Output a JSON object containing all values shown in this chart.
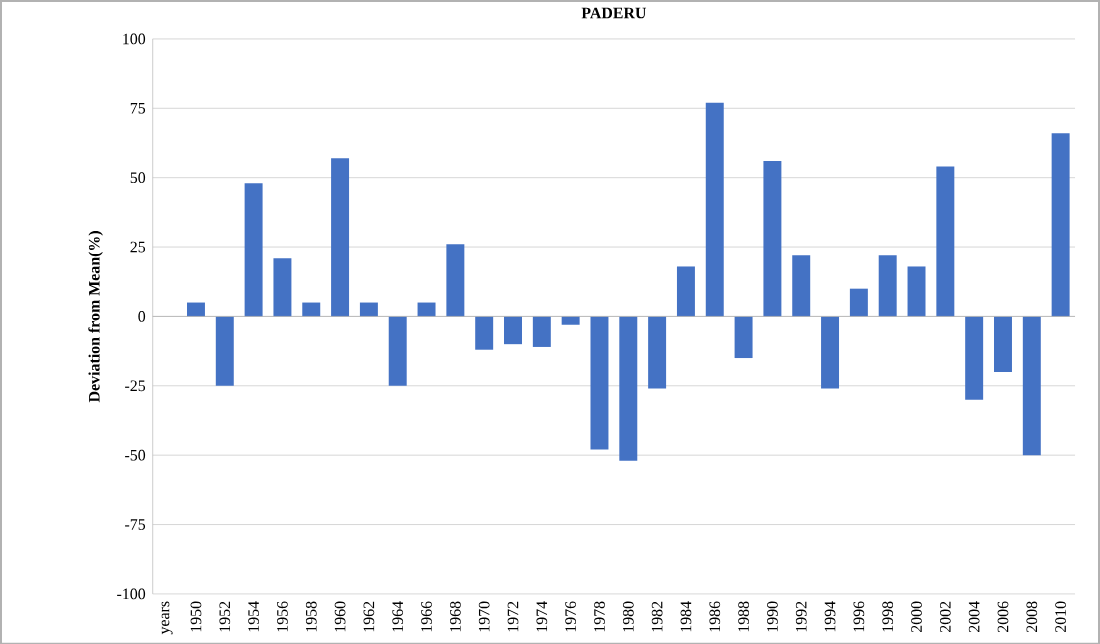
{
  "chart_data": {
    "type": "bar",
    "title": "PADERU",
    "ylabel": "Deviation from Mean(%)",
    "categories": [
      "years",
      "1950",
      "1952",
      "1954",
      "1956",
      "1958",
      "1960",
      "1962",
      "1964",
      "1966",
      "1968",
      "1970",
      "1972",
      "1974",
      "1976",
      "1978",
      "1980",
      "1982",
      "1984",
      "1986",
      "1988",
      "1990",
      "1992",
      "1994",
      "1996",
      "1998",
      "2000",
      "2002",
      "2004",
      "2006",
      "2008",
      "2010"
    ],
    "values": [
      null,
      5,
      -25,
      48,
      21,
      5,
      57,
      5,
      -25,
      5,
      26,
      -12,
      -10,
      -11,
      -3,
      -48,
      -52,
      -26,
      18,
      77,
      -15,
      56,
      22,
      -26,
      10,
      22,
      18,
      54,
      -30,
      -20,
      -50,
      66
    ],
    "color": "#4472c4",
    "ylim": [
      -100,
      100
    ],
    "yticks": [
      -100,
      -75,
      -50,
      -25,
      0,
      25,
      50,
      75,
      100
    ],
    "grid": "y"
  }
}
